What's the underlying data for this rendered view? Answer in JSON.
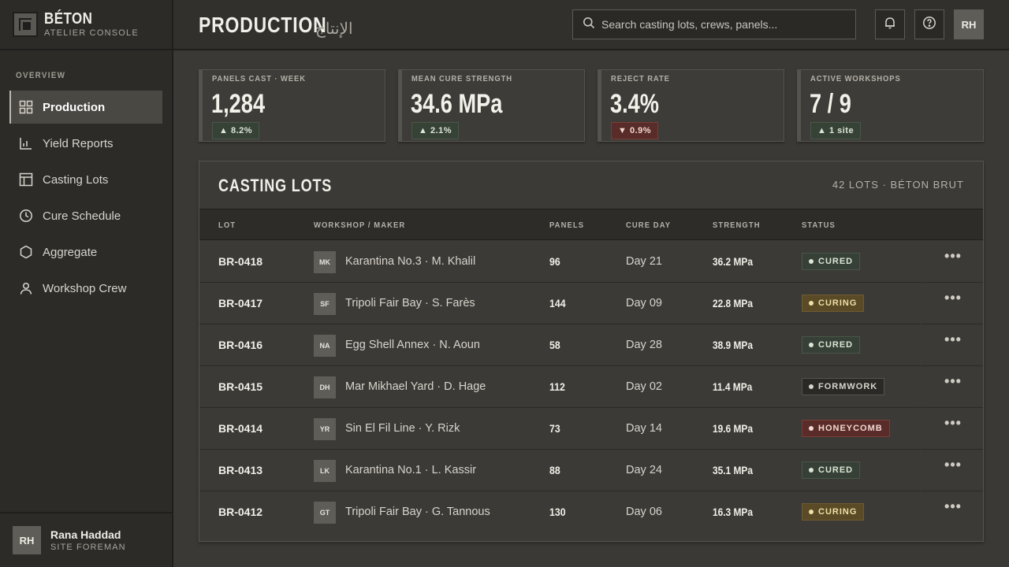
{
  "brand": {
    "name": "BÉTON",
    "subtitle": "ATELIER CONSOLE"
  },
  "nav": {
    "section": "OVERVIEW",
    "items": [
      {
        "label": "Production",
        "icon": "grid-icon",
        "active": true
      },
      {
        "label": "Yield Reports",
        "icon": "bar-chart-icon"
      },
      {
        "label": "Casting Lots",
        "icon": "layout-icon"
      },
      {
        "label": "Cure Schedule",
        "icon": "clock-icon"
      },
      {
        "label": "Aggregate",
        "icon": "hexagon-icon"
      },
      {
        "label": "Workshop Crew",
        "icon": "user-icon"
      }
    ]
  },
  "user": {
    "initials": "RH",
    "name": "Rana Haddad",
    "role": "SITE FOREMAN"
  },
  "header": {
    "title": "PRODUCTION",
    "title_ar": "الإنتاج",
    "search_placeholder": "Search casting lots, crews, panels...",
    "avatar": "RH"
  },
  "kpis": [
    {
      "label": "PANELS CAST · WEEK",
      "value": "1,284",
      "delta": "8.2%",
      "dir": "up"
    },
    {
      "label": "MEAN CURE STRENGTH",
      "value": "34.6 MPa",
      "delta": "2.1%",
      "dir": "up"
    },
    {
      "label": "REJECT RATE",
      "value": "3.4%",
      "delta": "0.9%",
      "dir": "down"
    },
    {
      "label": "ACTIVE WORKSHOPS",
      "value": "7 / 9",
      "delta": "1 site",
      "dir": "up"
    }
  ],
  "table": {
    "title": "CASTING LOTS",
    "meta": "42 LOTS · BÉTON BRUT",
    "columns": [
      "LOT",
      "WORKSHOP / MAKER",
      "PANELS",
      "CURE DAY",
      "STRENGTH",
      "STATUS"
    ],
    "rows": [
      {
        "lot": "BR-0418",
        "initials": "MK",
        "maker": "Karantina No.3 · M. Khalil",
        "panels": "96",
        "day": "Day 21",
        "strength": "36.2 MPa",
        "status": "CURED",
        "kind": "cured"
      },
      {
        "lot": "BR-0417",
        "initials": "SF",
        "maker": "Tripoli Fair Bay · S. Farès",
        "panels": "144",
        "day": "Day 09",
        "strength": "22.8 MPa",
        "status": "CURING",
        "kind": "curing"
      },
      {
        "lot": "BR-0416",
        "initials": "NA",
        "maker": "Egg Shell Annex · N. Aoun",
        "panels": "58",
        "day": "Day 28",
        "strength": "38.9 MPa",
        "status": "CURED",
        "kind": "cured"
      },
      {
        "lot": "BR-0415",
        "initials": "DH",
        "maker": "Mar Mikhael Yard · D. Hage",
        "panels": "112",
        "day": "Day 02",
        "strength": "11.4 MPa",
        "status": "FORMWORK",
        "kind": "formwork"
      },
      {
        "lot": "BR-0414",
        "initials": "YR",
        "maker": "Sin El Fil Line · Y. Rizk",
        "panels": "73",
        "day": "Day 14",
        "strength": "19.6 MPa",
        "status": "HONEYCOMB",
        "kind": "honey"
      },
      {
        "lot": "BR-0413",
        "initials": "LK",
        "maker": "Karantina No.1 · L. Kassir",
        "panels": "88",
        "day": "Day 24",
        "strength": "35.1 MPa",
        "status": "CURED",
        "kind": "cured"
      },
      {
        "lot": "BR-0412",
        "initials": "GT",
        "maker": "Tripoli Fair Bay · G. Tannous",
        "panels": "130",
        "day": "Day 06",
        "strength": "16.3 MPa",
        "status": "CURING",
        "kind": "curing"
      }
    ]
  }
}
